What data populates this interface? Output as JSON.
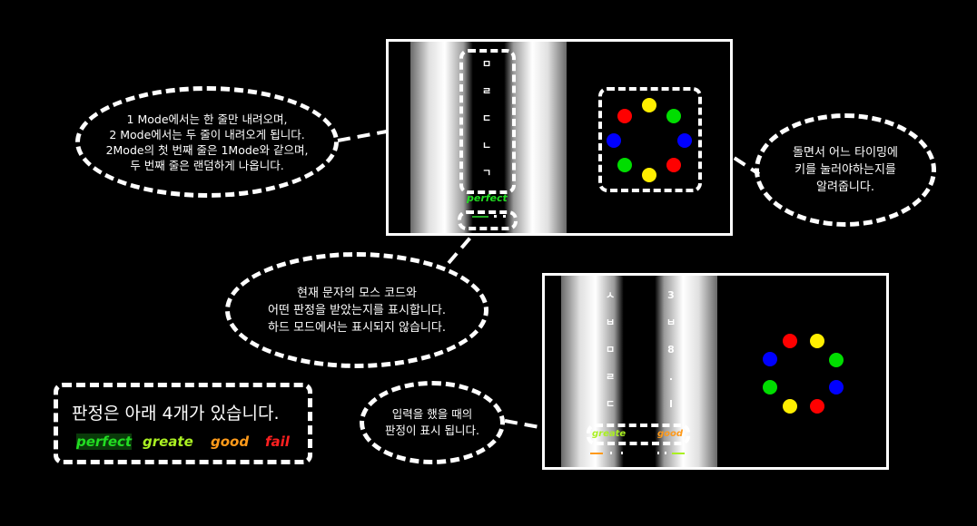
{
  "game1": {
    "column_letters": [
      "ㅁ",
      "ㄹ",
      "ㄷ",
      "ㄴ",
      "ㄱ"
    ],
    "judgement": "perfect"
  },
  "game2": {
    "col1_letters": [
      "ㅅ",
      "ㅂ",
      "ㅁ",
      "ㄹ",
      "ㄷ"
    ],
    "col2_letters": [
      "3",
      "ㅂ",
      "8",
      ".",
      "l"
    ],
    "judgement_left": "greate",
    "judgement_right": "good"
  },
  "callouts": {
    "mode_desc": "1 Mode에서는 한 줄만 내려오며,\n2 Mode에서는 두 줄이 내려오게 됩니다.\n2Mode의 첫 번째 줄은 1Mode와 같으며,\n두 번째 줄은 랜덤하게 나옵니다.",
    "timing_desc": "돌면서 어느 타이밍에\n키를 눌러야하는지를\n알려줍니다.",
    "morse_desc": "현재 문자의 모스 코드와\n어떤 판정을 받았는지를 표시합니다.\n하드 모드에서는 표시되지 않습니다.",
    "input_desc": "입력을 했을 때의\n판정이 표시 됩니다."
  },
  "legend": {
    "title": "판정은 아래 4개가 있습니다.",
    "items": [
      {
        "label": "perfect",
        "color": "#22dd22"
      },
      {
        "label": "greate",
        "color": "#aaf022"
      },
      {
        "label": "good",
        "color": "#ff9a1a"
      },
      {
        "label": "fail",
        "color": "#ff2020"
      }
    ]
  },
  "colors": {
    "red": "#ff0000",
    "yellow": "#ffee00",
    "green": "#00dd00",
    "blue": "#0000ff"
  }
}
